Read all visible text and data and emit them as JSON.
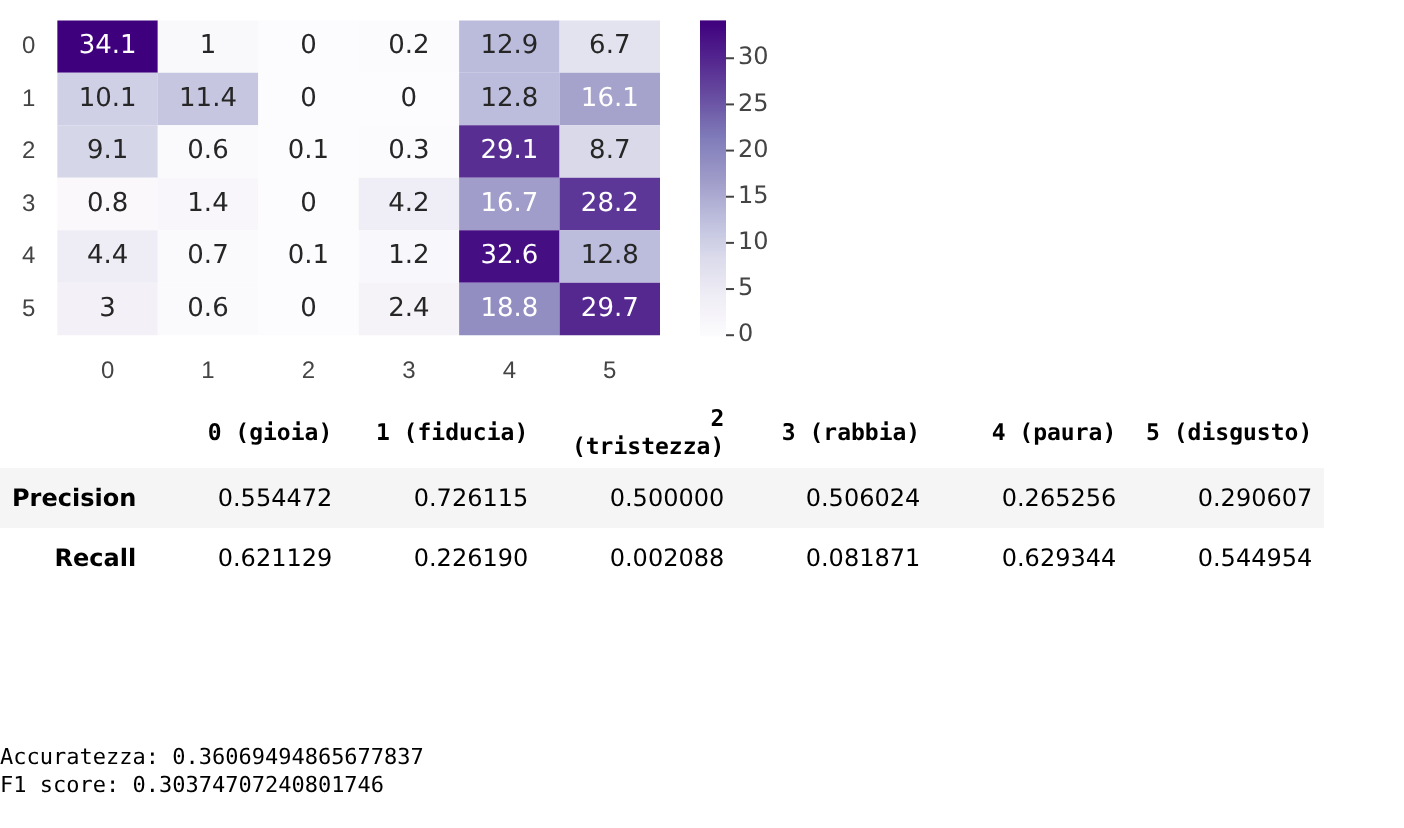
{
  "chart_data": {
    "type": "heatmap",
    "categories": [
      "0",
      "1",
      "2",
      "3",
      "4",
      "5"
    ],
    "y_categories": [
      "0",
      "1",
      "2",
      "3",
      "4",
      "5"
    ],
    "cells": [
      [
        34.1,
        1,
        0,
        0.2,
        12.9,
        6.7
      ],
      [
        10.1,
        11.4,
        0,
        0,
        12.8,
        16.1
      ],
      [
        9.1,
        0.6,
        0.1,
        0.3,
        29.1,
        8.7
      ],
      [
        0.8,
        1.4,
        0,
        4.2,
        16.7,
        28.2
      ],
      [
        4.4,
        0.7,
        0.1,
        1.2,
        32.6,
        12.8
      ],
      [
        3,
        0.6,
        0,
        2.4,
        18.8,
        29.7
      ]
    ],
    "data_labels": true,
    "clim": [
      0,
      34.1
    ],
    "cticks": [
      0,
      5,
      10,
      15,
      20,
      25,
      30
    ],
    "annotations": [
      "0 (gioia)  1 (fiducia)  2 (tristezza)  3 (rabbia)  4 (paura)  5 (disgusto)",
      "Precision  0.554472  0.726115  0.500000  0.506024  0.265256  0.290607",
      "Recall  0.621129  0.226190  0.002088  0.081871  0.629344  0.544954",
      "Accuratezza: 0.36069494865677837",
      "F1 score: 0.30374707240801746"
    ]
  }
}
